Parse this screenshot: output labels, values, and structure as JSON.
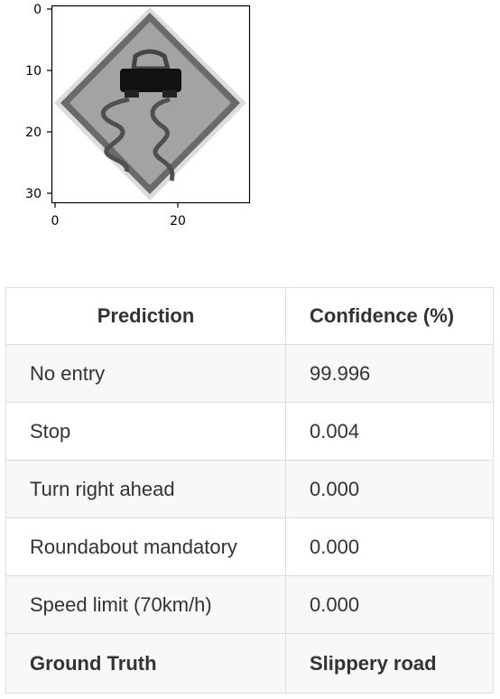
{
  "plot": {
    "x_ticks": [
      "0",
      "20"
    ],
    "y_ticks": [
      "0",
      "10",
      "20",
      "30"
    ],
    "image_icon": "slippery-road-sign-icon"
  },
  "table": {
    "headers": {
      "prediction": "Prediction",
      "confidence": "Confidence (%)"
    },
    "rows": [
      {
        "prediction": "No entry",
        "confidence": "99.996"
      },
      {
        "prediction": "Stop",
        "confidence": "0.004"
      },
      {
        "prediction": "Turn right ahead",
        "confidence": "0.000"
      },
      {
        "prediction": "Roundabout mandatory",
        "confidence": "0.000"
      },
      {
        "prediction": "Speed limit (70km/h)",
        "confidence": "0.000"
      }
    ],
    "footer": {
      "label": "Ground Truth",
      "value": "Slippery road"
    }
  }
}
